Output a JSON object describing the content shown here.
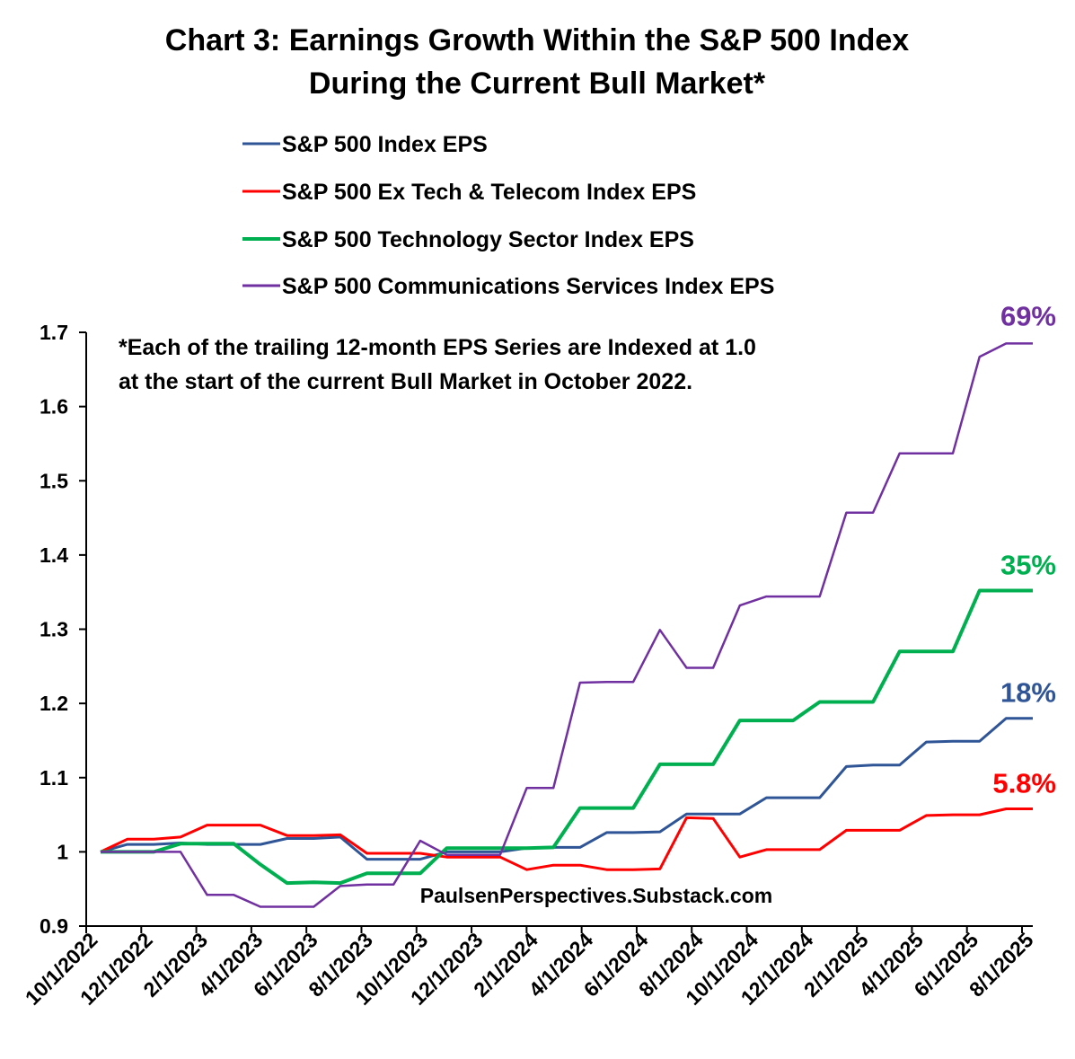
{
  "chart_data": {
    "type": "line",
    "title_lines": [
      "Chart 3: Earnings Growth Within the S&P 500 Index",
      "During the Current Bull Market*"
    ],
    "note_lines": [
      "*Each of  the trailing 12-month EPS Series are Indexed at 1.0",
      "at the start of the current Bull Market in October 2022."
    ],
    "watermark": "PaulsenPerspectives.Substack.com",
    "xlabel": "",
    "ylabel": "",
    "ylim": [
      0.9,
      1.7
    ],
    "y_ticks": [
      "0.9",
      "1",
      "1.1",
      "1.2",
      "1.3",
      "1.4",
      "1.5",
      "1.6",
      "1.7"
    ],
    "y_tick_values": [
      0.9,
      1.0,
      1.1,
      1.2,
      1.3,
      1.4,
      1.5,
      1.6,
      1.7
    ],
    "x_ticks": [
      "10/1/2022",
      "12/1/2022",
      "2/1/2023",
      "4/1/2023",
      "6/1/2023",
      "8/1/2023",
      "10/1/2023",
      "12/1/2023",
      "2/1/2024",
      "4/1/2024",
      "6/1/2024",
      "8/1/2024",
      "10/1/2024",
      "12/1/2024",
      "2/1/2025",
      "4/1/2025",
      "6/1/2025",
      "8/1/2025"
    ],
    "x_range_months": [
      0,
      35
    ],
    "x_months": [
      0,
      1,
      2,
      3,
      4,
      5,
      6,
      7,
      8,
      9,
      10,
      11,
      12,
      13,
      14,
      15,
      16,
      17,
      18,
      19,
      20,
      21,
      22,
      23,
      24,
      25,
      26,
      27,
      28,
      29,
      30,
      31,
      32,
      33,
      34,
      35
    ],
    "series": [
      {
        "name": "S&P 500 Index EPS",
        "color": "#2f5597",
        "values": [
          1.0,
          1.01,
          1.01,
          1.012,
          1.01,
          1.01,
          1.01,
          1.018,
          1.018,
          1.02,
          0.99,
          0.99,
          0.99,
          1.0,
          1.0,
          1.0,
          1.005,
          1.006,
          1.006,
          1.026,
          1.026,
          1.027,
          1.051,
          1.051,
          1.051,
          1.073,
          1.073,
          1.073,
          1.115,
          1.117,
          1.117,
          1.148,
          1.149,
          1.149,
          1.18,
          1.18
        ],
        "end_label": "18%"
      },
      {
        "name": "S&P 500 Ex Tech & Telecom Index EPS",
        "color": "#ff0000",
        "values": [
          1.0,
          1.017,
          1.017,
          1.02,
          1.036,
          1.036,
          1.036,
          1.022,
          1.022,
          1.023,
          0.998,
          0.998,
          0.998,
          0.993,
          0.993,
          0.993,
          0.976,
          0.982,
          0.982,
          0.976,
          0.976,
          0.977,
          1.046,
          1.045,
          0.993,
          1.003,
          1.003,
          1.003,
          1.029,
          1.029,
          1.029,
          1.049,
          1.05,
          1.05,
          1.058,
          1.058
        ],
        "end_label": "5.8%"
      },
      {
        "name": "S&P 500 Technology Sector Index EPS",
        "color": "#00b050",
        "values": [
          1.0,
          1.0,
          1.0,
          1.011,
          1.011,
          1.011,
          0.983,
          0.958,
          0.959,
          0.958,
          0.971,
          0.971,
          0.971,
          1.005,
          1.005,
          1.005,
          1.005,
          1.006,
          1.059,
          1.059,
          1.059,
          1.118,
          1.118,
          1.118,
          1.177,
          1.177,
          1.177,
          1.202,
          1.202,
          1.202,
          1.27,
          1.27,
          1.27,
          1.352,
          1.352,
          1.352
        ],
        "end_label": "35%"
      },
      {
        "name": "S&P 500 Communications Services Index EPS",
        "color": "#7030a0",
        "values": [
          1.0,
          1.0,
          1.0,
          1.0,
          0.942,
          0.942,
          0.926,
          0.926,
          0.926,
          0.954,
          0.956,
          0.956,
          1.015,
          0.996,
          0.996,
          0.996,
          1.086,
          1.086,
          1.228,
          1.229,
          1.229,
          1.299,
          1.248,
          1.248,
          1.332,
          1.344,
          1.344,
          1.344,
          1.457,
          1.457,
          1.537,
          1.537,
          1.537,
          1.667,
          1.685,
          1.685
        ],
        "end_label": "69%"
      }
    ],
    "grid": false,
    "legend_position": "top-center"
  }
}
